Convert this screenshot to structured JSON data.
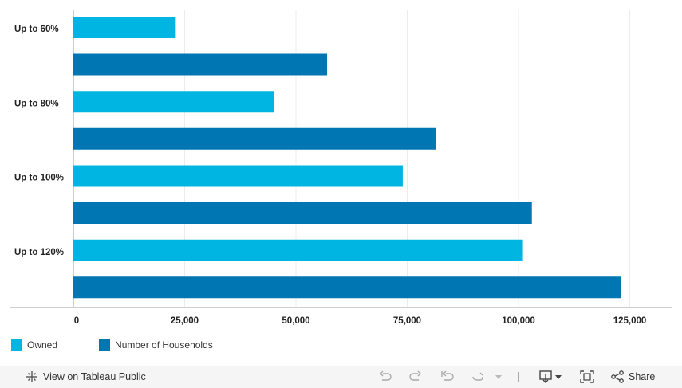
{
  "chart_data": {
    "type": "bar",
    "orientation": "horizontal",
    "categories": [
      "Up to 60%",
      "Up to 80%",
      "Up to 100%",
      "Up to 120%"
    ],
    "series": [
      {
        "name": "Owned",
        "color": "#00b5e2",
        "values": [
          23000,
          45000,
          74000,
          101000
        ]
      },
      {
        "name": "Number of Households",
        "color": "#0076b2",
        "values": [
          57000,
          81500,
          103000,
          123000
        ]
      }
    ],
    "xlim": [
      0,
      135000
    ],
    "xticks": [
      0,
      25000,
      50000,
      75000,
      100000,
      125000
    ],
    "xtick_labels": [
      "0",
      "25,000",
      "50,000",
      "75,000",
      "100,000",
      "125,000"
    ],
    "grid": true,
    "legend_position": "bottom-left"
  },
  "legend": {
    "items": [
      {
        "label": "Owned",
        "color": "#00b5e2"
      },
      {
        "label": "Number of Households",
        "color": "#0076b2"
      }
    ]
  },
  "toolbar": {
    "view_label": "View on Tableau Public",
    "share_label": "Share",
    "icons": [
      "undo-icon",
      "redo-icon",
      "revert-icon",
      "refresh-icon",
      "download-icon",
      "fullscreen-icon",
      "share-icon"
    ]
  }
}
